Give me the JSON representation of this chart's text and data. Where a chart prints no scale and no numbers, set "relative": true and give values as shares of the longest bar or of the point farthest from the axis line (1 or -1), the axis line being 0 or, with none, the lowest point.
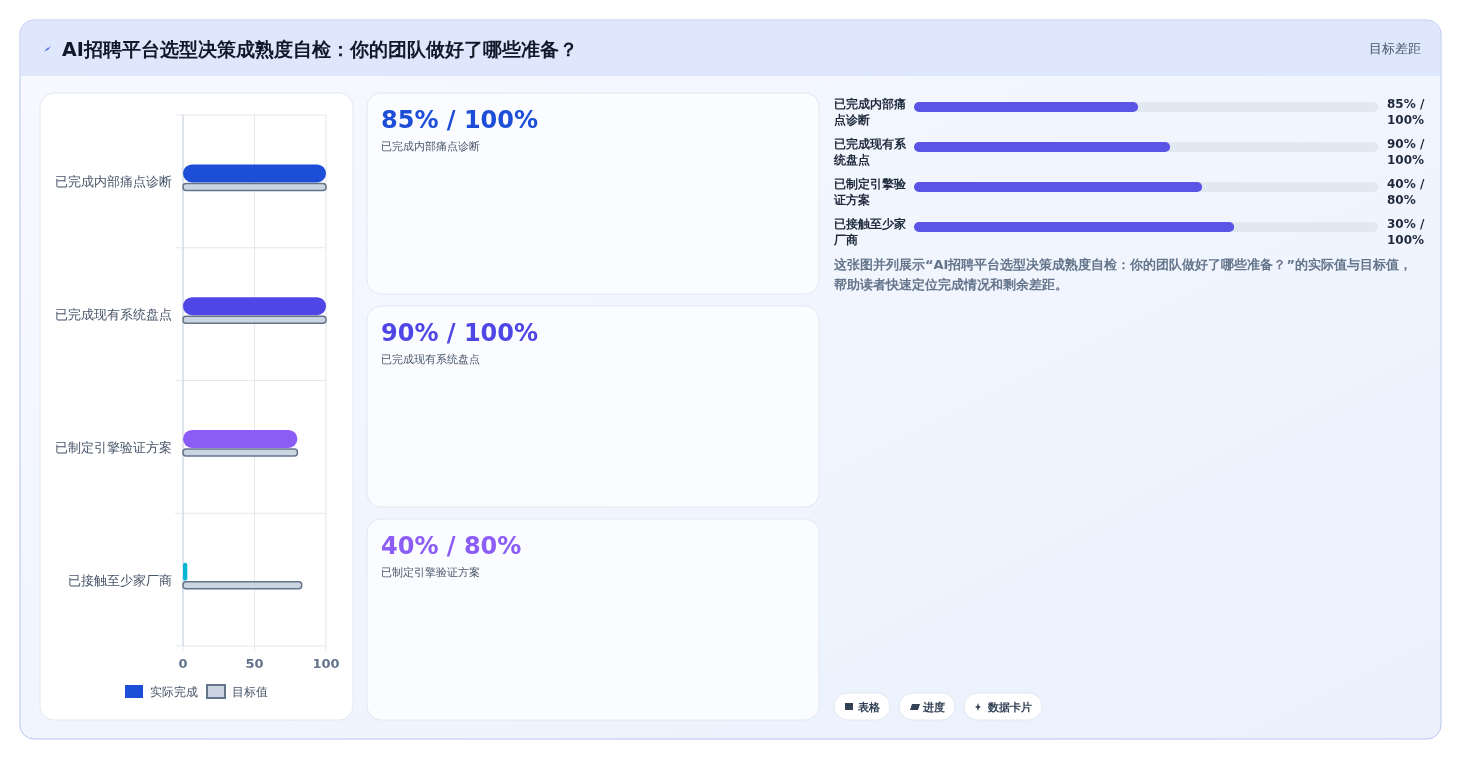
{
  "chart_data": [
    {
      "type": "bar",
      "title": "AI招聘平台选型决策成熟度自检：你的团队做好了哪些准备？",
      "orientation": "horizontal",
      "categories": [
        "已完成内部痛点诊断",
        "已完成现有系统盘点",
        "已制定引擎验证方案",
        "已接触至少家厂商"
      ],
      "series": [
        {
          "name": "实际完成",
          "color": "#1d4ed8",
          "colors": [
            "#1d4ed8",
            "#4f46e5",
            "#8b5cf6",
            "#06b6d4"
          ],
          "values": [
            100,
            100,
            80,
            3
          ]
        },
        {
          "name": "目标值",
          "color": "#cbd5e1",
          "values": [
            100,
            100,
            80,
            83
          ]
        }
      ],
      "xlim": [
        0,
        100
      ],
      "xticks": [
        0,
        50,
        100
      ],
      "grid": true,
      "legend": "bottom",
      "annotations": [
        "目标差距"
      ]
    },
    {
      "type": "other",
      "colors": [
        "#1d4ed8",
        "#4f46e5",
        "#8b5cf6"
      ],
      "annotations": [
        "85% / 100%",
        "已完成内部痛点诊断",
        "90% / 100%",
        "已完成现有系统盘点",
        "40% / 80%",
        "已制定引擎验证方案"
      ]
    },
    {
      "type": "bar",
      "orientation": "horizontal",
      "categories": [
        "已完成内部痛点诊断",
        "已完成现有系统盘点",
        "已制定引擎验证方案",
        "已接触至少家厂商"
      ],
      "series": [
        {
          "color": "#5b54e6",
          "values": [
            0.7,
            0.8,
            0.9,
            1
          ]
        }
      ],
      "relative": true,
      "annotations": [
        "85% / 100%",
        "90% / 100%",
        "40% / 80%",
        "30% / 100%",
        "这张图并列展示“AI招聘平台选型决策成熟度自检：你的团队做好了哪些准备？”的实际值与目标值，帮助读者快速定位完成情况和剩余差距。",
        "表格",
        "进度",
        "数据卡片"
      ]
    }
  ]
}
